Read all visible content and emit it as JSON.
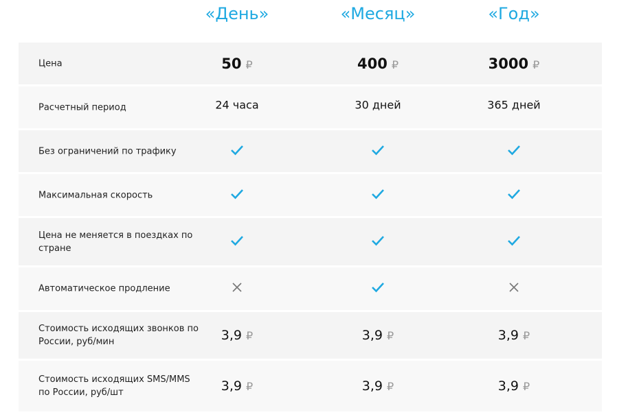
{
  "plans": [
    "«День»",
    "«Месяц»",
    "«Год»"
  ],
  "colors": {
    "accent": "#1fa9e1",
    "cross": "#777777"
  },
  "currency": "₽",
  "rows": [
    {
      "label": "Цена",
      "type": "price",
      "values": [
        "50",
        "400",
        "3000"
      ]
    },
    {
      "label": "Расчетный период",
      "type": "text",
      "values": [
        "24 часа",
        "30 дней",
        "365 дней"
      ]
    },
    {
      "label": "Без ограничений по трафику",
      "type": "bool",
      "values": [
        true,
        true,
        true
      ]
    },
    {
      "label": "Максимальная скорость",
      "type": "bool",
      "values": [
        true,
        true,
        true
      ]
    },
    {
      "label": "Цена не меняется в поездках по стране",
      "type": "bool",
      "values": [
        true,
        true,
        true
      ]
    },
    {
      "label": "Автоматическое продление",
      "type": "bool",
      "values": [
        false,
        true,
        false
      ]
    },
    {
      "label": "Стоимость исходящих звонков по России, руб/мин",
      "type": "num",
      "values": [
        "3,9",
        "3,9",
        "3,9"
      ]
    },
    {
      "label": "Стоимость исходящих SMS/MMS по России, руб/шт",
      "type": "num",
      "values": [
        "3,9",
        "3,9",
        "3,9"
      ]
    }
  ]
}
